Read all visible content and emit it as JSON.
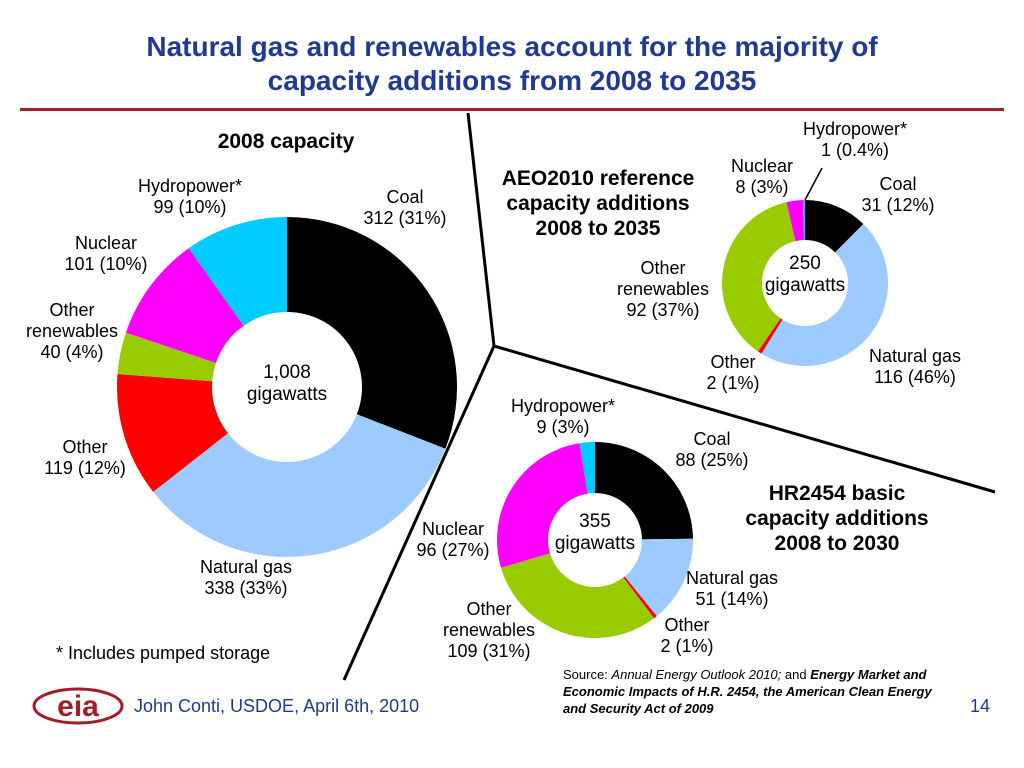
{
  "slide": {
    "title_lines": [
      "Natural gas and renewables account for the majority of",
      "capacity additions from 2008 to 2035"
    ],
    "footnote": "* Includes pumped storage",
    "author": "John Conti, USDOE, April 6th, 2010",
    "page_number": "14",
    "logo_text": "eia",
    "source": {
      "prefix": "Source: ",
      "title1": "Annual Energy Outlook 2010;",
      "joiner": " and ",
      "title2": "Energy Market and Economic Impacts of H.R. 2454, the American Clean Energy and Security Act of 2009"
    }
  },
  "colors": {
    "title": "#1f3a93",
    "rule": "#a31d28",
    "author": "#1f3a93",
    "logo": "#a31d28",
    "coal": "#000000",
    "natural_gas": "#9ecbff",
    "other": "#ff0000",
    "other_renewables": "#99cc00",
    "nuclear": "#ff00ff",
    "hydropower": "#00ccff"
  },
  "chart_data": [
    {
      "type": "pie",
      "title": "2008 capacity",
      "center_text": [
        "1,008",
        "gigawatts"
      ],
      "slices": [
        {
          "name": "Coal",
          "value": 312,
          "percent": "31%"
        },
        {
          "name": "Natural gas",
          "value": 338,
          "percent": "33%"
        },
        {
          "name": "Other",
          "value": 119,
          "percent": "12%"
        },
        {
          "name": "Other renewables",
          "value": 40,
          "percent": "4%"
        },
        {
          "name": "Nuclear",
          "value": 101,
          "percent": "10%"
        },
        {
          "name": "Hydropower*",
          "value": 99,
          "percent": "10%"
        }
      ]
    },
    {
      "type": "pie",
      "title": "AEO2010 reference capacity additions 2008 to 2035",
      "center_text": [
        "250",
        "gigawatts"
      ],
      "slices": [
        {
          "name": "Coal",
          "value": 31,
          "percent": "12%"
        },
        {
          "name": "Natural gas",
          "value": 116,
          "percent": "46%"
        },
        {
          "name": "Other",
          "value": 2,
          "percent": "1%"
        },
        {
          "name": "Other renewables",
          "value": 92,
          "percent": "37%"
        },
        {
          "name": "Nuclear",
          "value": 8,
          "percent": "3%"
        },
        {
          "name": "Hydropower*",
          "value": 1,
          "percent": "0.4%"
        }
      ]
    },
    {
      "type": "pie",
      "title": "HR2454 basic capacity additions 2008 to 2030",
      "center_text": [
        "355",
        "gigawatts"
      ],
      "slices": [
        {
          "name": "Coal",
          "value": 88,
          "percent": "25%"
        },
        {
          "name": "Natural gas",
          "value": 51,
          "percent": "14%"
        },
        {
          "name": "Other",
          "value": 2,
          "percent": "1%"
        },
        {
          "name": "Other renewables",
          "value": 109,
          "percent": "31%"
        },
        {
          "name": "Nuclear",
          "value": 96,
          "percent": "27%"
        },
        {
          "name": "Hydropower*",
          "value": 9,
          "percent": "3%"
        }
      ]
    }
  ]
}
